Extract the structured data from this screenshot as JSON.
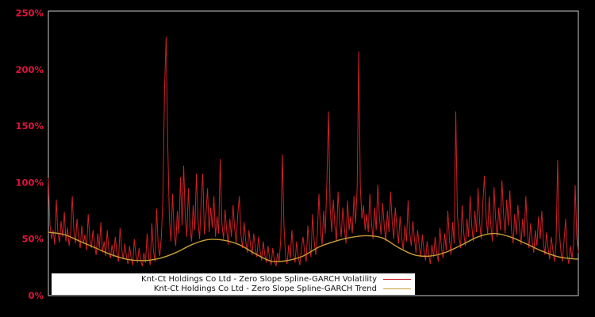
{
  "background": "#000000",
  "axis": {
    "tick_color": "#dc143c",
    "frame_color": "#c8c8c8"
  },
  "legend": {
    "background": "#ffffff",
    "text_color": "#111111"
  },
  "chart_data": {
    "type": "line",
    "title": "",
    "xlabel": "",
    "ylabel": "",
    "grid": false,
    "legend_position": "lower-left-inside",
    "y_ticks": [
      0,
      50,
      100,
      150,
      200,
      250
    ],
    "y_tick_labels": [
      "0%",
      "50%",
      "100%",
      "150%",
      "200%",
      "250%"
    ],
    "ylim": [
      0,
      251.75
    ],
    "x_count": 334,
    "series": [
      {
        "name": "Knt-Ct Holdings Co Ltd - Zero Slope Spline-GARCH Volatility",
        "color": "#cc2127",
        "unit": "percent",
        "values": [
          104,
          62,
          50,
          58,
          45,
          85,
          55,
          47,
          66,
          52,
          74,
          48,
          60,
          44,
          55,
          88,
          58,
          46,
          68,
          50,
          42,
          62,
          46,
          54,
          40,
          72,
          50,
          42,
          58,
          44,
          36,
          55,
          42,
          65,
          38,
          48,
          35,
          58,
          40,
          33,
          45,
          34,
          52,
          38,
          30,
          60,
          42,
          32,
          46,
          35,
          28,
          44,
          33,
          27,
          50,
          36,
          29,
          42,
          31,
          26,
          38,
          29,
          55,
          34,
          27,
          64,
          40,
          30,
          77,
          45,
          35,
          52,
          88,
          183,
          229,
          132,
          68,
          48,
          90,
          56,
          44,
          75,
          55,
          105,
          62,
          115,
          70,
          52,
          95,
          60,
          48,
          80,
          58,
          108,
          66,
          50,
          85,
          108,
          54,
          72,
          95,
          56,
          78,
          60,
          88,
          52,
          70,
          55,
          121,
          64,
          50,
          76,
          58,
          45,
          68,
          52,
          80,
          60,
          47,
          72,
          88,
          54,
          42,
          65,
          48,
          38,
          58,
          44,
          36,
          55,
          42,
          34,
          52,
          40,
          31,
          48,
          36,
          29,
          44,
          33,
          27,
          42,
          31,
          26,
          38,
          30,
          50,
          125,
          62,
          35,
          28,
          45,
          33,
          58,
          38,
          29,
          48,
          35,
          27,
          42,
          52,
          38,
          30,
          62,
          44,
          34,
          72,
          48,
          36,
          55,
          90,
          58,
          45,
          75,
          55,
          102,
          163,
          78,
          56,
          85,
          62,
          48,
          92,
          66,
          52,
          78,
          60,
          46,
          84,
          58,
          70,
          55,
          88,
          64,
          95,
          216,
          96,
          68,
          80,
          58,
          72,
          56,
          90,
          65,
          50,
          78,
          58,
          98,
          70,
          54,
          82,
          62,
          48,
          75,
          56,
          92,
          66,
          50,
          78,
          60,
          46,
          70,
          52,
          40,
          62,
          48,
          84,
          56,
          44,
          66,
          50,
          38,
          58,
          44,
          34,
          54,
          40,
          31,
          48,
          36,
          28,
          45,
          34,
          52,
          38,
          30,
          60,
          42,
          33,
          55,
          40,
          75,
          50,
          36,
          65,
          46,
          163,
          72,
          52,
          42,
          80,
          55,
          44,
          68,
          52,
          88,
          62,
          48,
          75,
          56,
          95,
          64,
          50,
          82,
          106,
          70,
          54,
          88,
          62,
          48,
          96,
          68,
          52,
          78,
          58,
          102,
          72,
          55,
          85,
          62,
          93,
          58,
          46,
          72,
          54,
          80,
          60,
          45,
          68,
          52,
          88,
          56,
          42,
          64,
          48,
          38,
          58,
          44,
          70,
          50,
          75,
          48,
          36,
          56,
          42,
          32,
          52,
          40,
          30,
          46,
          120,
          58,
          40,
          30,
          48,
          68,
          36,
          28,
          44,
          33,
          45,
          98,
          52,
          38
        ]
      },
      {
        "name": "Knt-Ct Holdings Co Ltd - Zero Slope Spline-GARCH Trend",
        "color": "#c99f36",
        "unit": "percent",
        "index_step": 10,
        "values": [
          56,
          54,
          48,
          42,
          36,
          32,
          31,
          33,
          38,
          45,
          49.5,
          49,
          45,
          37,
          30.5,
          31,
          35,
          43,
          48,
          51.5,
          53,
          51,
          42.5,
          36,
          35,
          38.5,
          45,
          52,
          55,
          52,
          46,
          39.5,
          34.5,
          32.5,
          32.5
        ]
      }
    ]
  }
}
